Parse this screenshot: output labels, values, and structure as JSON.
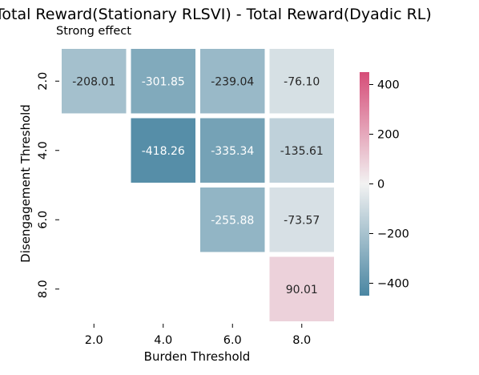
{
  "chart_data": {
    "type": "heatmap",
    "title": "Total Reward(Stationary RLSVI) - Total Reward(Dyadic RL)",
    "subtitle": "Strong effect",
    "xlabel": "Burden Threshold",
    "ylabel": "Disengagement Threshold",
    "x_categories": [
      "2.0",
      "4.0",
      "6.0",
      "8.0"
    ],
    "y_categories": [
      "2.0",
      "4.0",
      "6.0",
      "8.0"
    ],
    "values": [
      [
        -208.01,
        -301.85,
        -239.04,
        -76.1
      ],
      [
        null,
        -418.26,
        -335.34,
        -135.61
      ],
      [
        null,
        null,
        -255.88,
        -73.57
      ],
      [
        null,
        null,
        null,
        90.01
      ]
    ],
    "labels": [
      [
        "-208.01",
        "-301.85",
        "-239.04",
        "-76.10"
      ],
      [
        null,
        "-418.26",
        "-335.34",
        "-135.61"
      ],
      [
        null,
        null,
        "-255.88",
        "-73.57"
      ],
      [
        null,
        null,
        null,
        "90.01"
      ]
    ],
    "colorbar": {
      "vmin": -450,
      "vmax": 450,
      "ticks": [
        400,
        200,
        0,
        -200,
        -400
      ],
      "tick_labels": [
        "400",
        "200",
        "0",
        "−200",
        "−400"
      ]
    },
    "colors": {
      "negative": "#4a86a2",
      "center": "#f2f2f2",
      "positive": "#d64d78",
      "dark_text": "#262626",
      "light_text": "#ffffff"
    },
    "legend_position": "right",
    "grid": false
  }
}
